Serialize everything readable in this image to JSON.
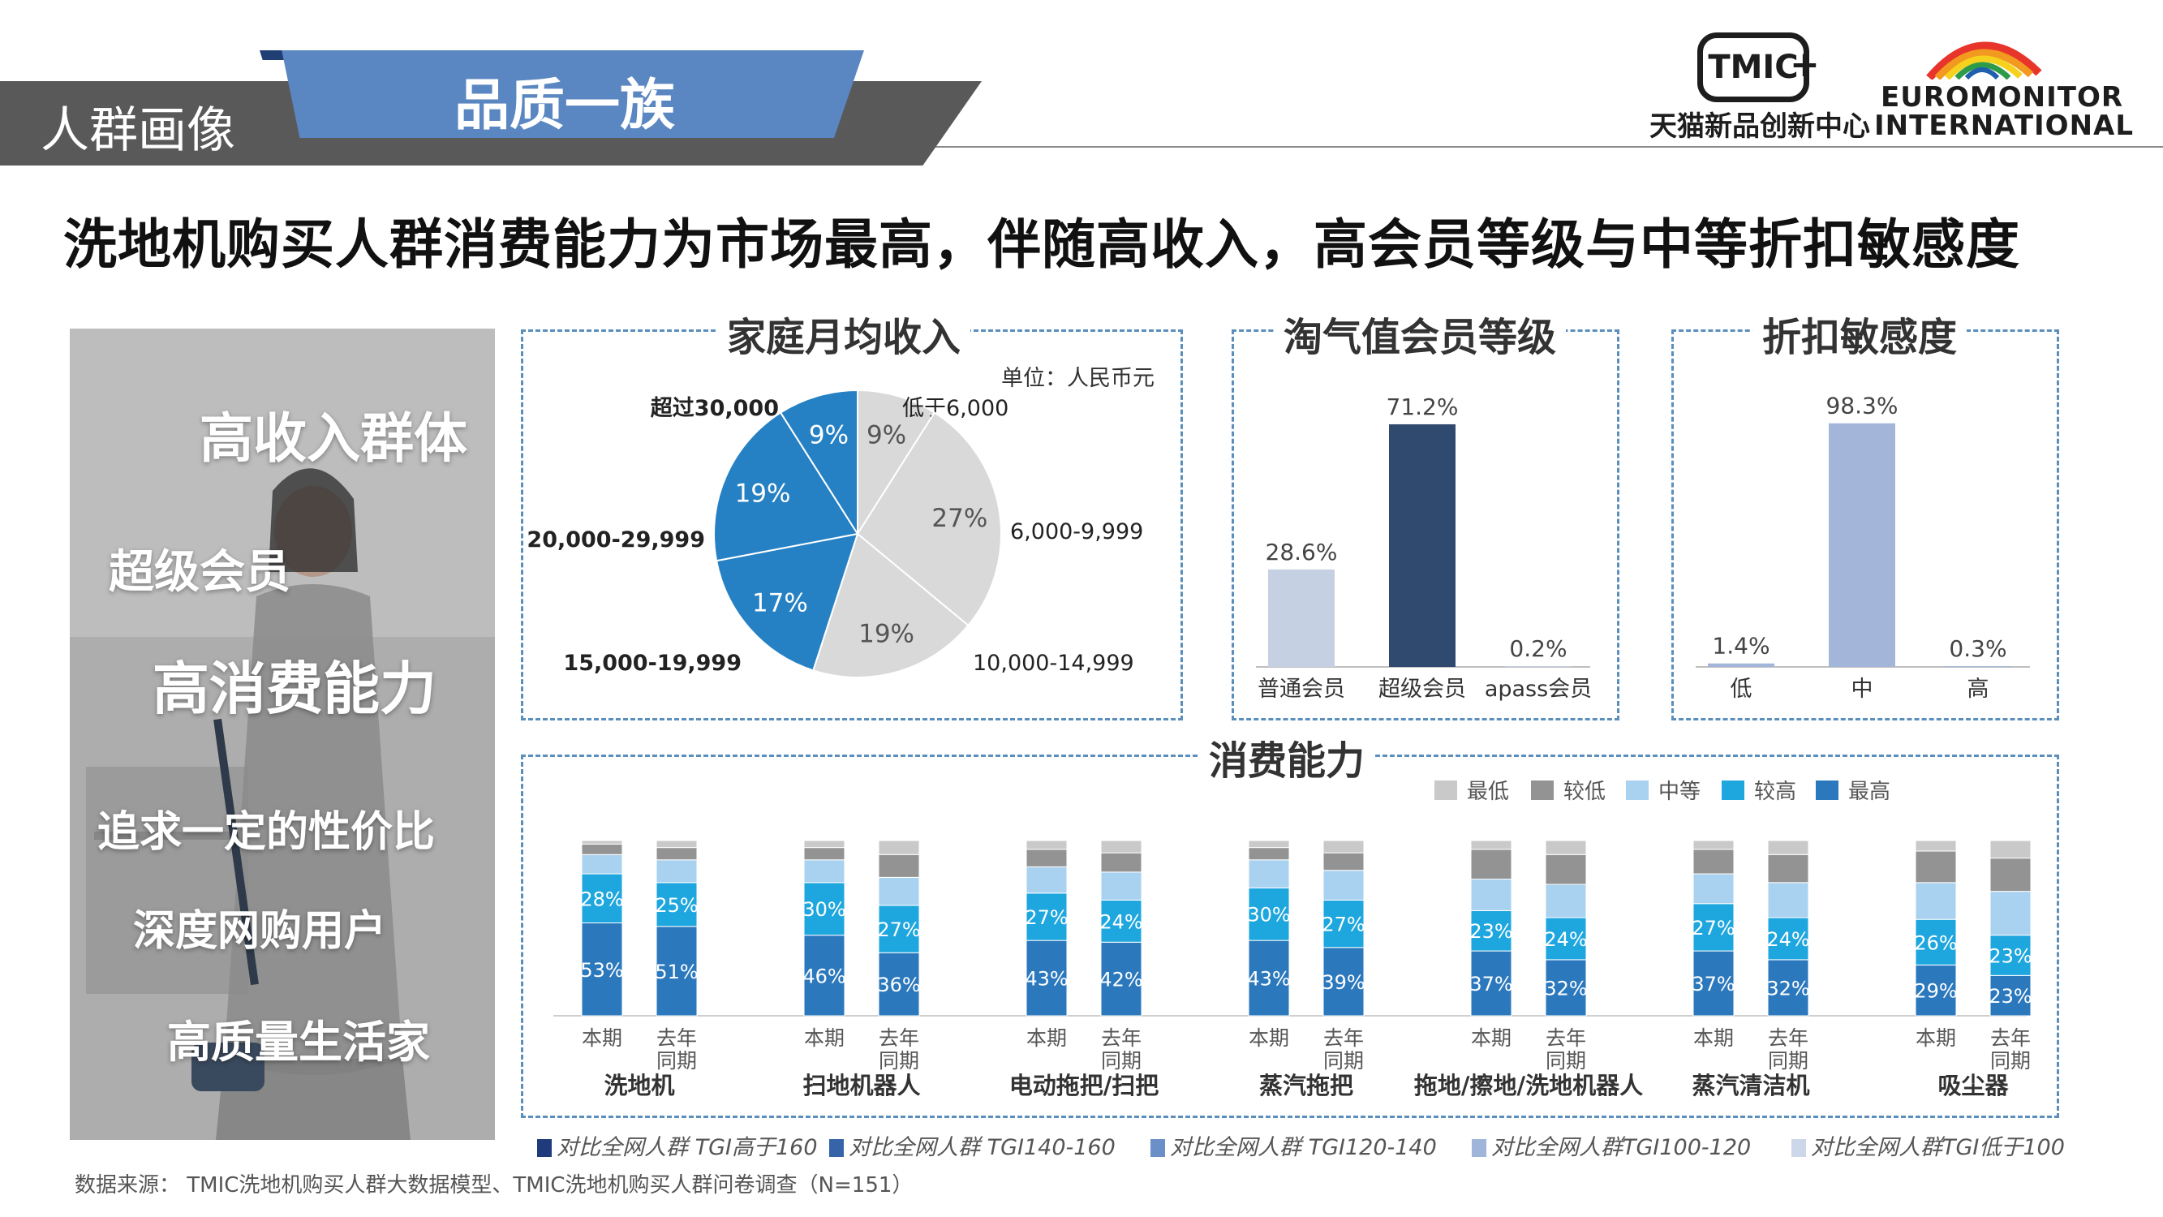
{
  "header": {
    "section_label": "人群画像",
    "tab_label": "品质一族",
    "logo_tmic": "TMIC",
    "logo_tmic_sub": "天猫新品创新中心",
    "logo_euro_line1": "EUROMONITOR",
    "logo_euro_line2": "INTERNATIONAL"
  },
  "headline": "洗地机购买人群消费能力为市场最高，伴随高收入，高会员等级与中等折扣敏感度",
  "photo_panel": {
    "labels": [
      "高收入群体",
      "超级会员",
      "高消费能力",
      "追求一定的性价比",
      "深度网购用户",
      "高质量生活家"
    ]
  },
  "colors": {
    "pie_blue": "#2581c4",
    "pie_grey": "#d9d9d9",
    "member_light": "#c5d0e3",
    "member_dark": "#2f4a6e",
    "discount_bar": "#a3b6d9",
    "seg_lowest": "#c9c9c9",
    "seg_low": "#939393",
    "seg_mid": "#a9d1f0",
    "seg_high": "#1ea6de",
    "seg_highest": "#2b78bd",
    "tgi_160": "#1f3b7b",
    "tgi_140": "#3763a8",
    "tgi_120": "#6b8fc8",
    "tgi_100": "#9fb5da",
    "tgi_low": "#cdd7ea"
  },
  "chart_data": [
    {
      "type": "pie",
      "title": "家庭月均收入",
      "unit_note": "单位：人民币元",
      "slices": [
        {
          "label": "低于6,000",
          "value": 9,
          "display": "9%",
          "group": "grey"
        },
        {
          "label": "6,000-9,999",
          "value": 27,
          "display": "27%",
          "group": "grey"
        },
        {
          "label": "10,000-14,999",
          "value": 19,
          "display": "19%",
          "group": "grey"
        },
        {
          "label": "15,000-19,999",
          "value": 17,
          "display": "17%",
          "group": "blue"
        },
        {
          "label": "20,000-29,999",
          "value": 19,
          "display": "19%",
          "group": "blue"
        },
        {
          "label": "超过30,000",
          "value": 9,
          "display": "9%",
          "group": "blue"
        }
      ]
    },
    {
      "type": "bar",
      "title": "淘气值会员等级",
      "categories": [
        "普通会员",
        "超级会员",
        "apass会员"
      ],
      "values": [
        28.6,
        71.2,
        0.2
      ],
      "labels": [
        "28.6%",
        "71.2%",
        "0.2%"
      ],
      "ylim": [
        0,
        80
      ]
    },
    {
      "type": "bar",
      "title": "折扣敏感度",
      "categories": [
        "低",
        "中",
        "高"
      ],
      "values": [
        1.4,
        98.3,
        0.3
      ],
      "labels": [
        "1.4%",
        "98.3%",
        "0.3%"
      ],
      "ylim": [
        0,
        110
      ]
    },
    {
      "type": "bar",
      "stacked": true,
      "title": "消费能力",
      "legend": [
        "最低",
        "较低",
        "中等",
        "较高",
        "最高"
      ],
      "period_labels": [
        "本期",
        "去年同期"
      ],
      "groups": [
        {
          "name": "洗地机",
          "bars": [
            {
              "period": "本期",
              "segments": [
                2,
                6,
                11,
                28,
                53
              ]
            },
            {
              "period": "去年同期",
              "segments": [
                4,
                7,
                13,
                25,
                51
              ]
            }
          ]
        },
        {
          "name": "扫地机器人",
          "bars": [
            {
              "period": "本期",
              "segments": [
                4,
                7,
                13,
                30,
                46
              ]
            },
            {
              "period": "去年同期",
              "segments": [
                8,
                13,
                16,
                27,
                36
              ]
            }
          ]
        },
        {
          "name": "电动拖把/扫把",
          "bars": [
            {
              "period": "本期",
              "segments": [
                5,
                10,
                15,
                27,
                43
              ]
            },
            {
              "period": "去年同期",
              "segments": [
                7,
                11,
                16,
                24,
                42
              ]
            }
          ]
        },
        {
          "name": "蒸汽拖把",
          "bars": [
            {
              "period": "本期",
              "segments": [
                4,
                7,
                16,
                30,
                43
              ]
            },
            {
              "period": "去年同期",
              "segments": [
                7,
                10,
                17,
                27,
                39
              ]
            }
          ]
        },
        {
          "name": "拖地/擦地/洗地机器人",
          "bars": [
            {
              "period": "本期",
              "segments": [
                5,
                17,
                18,
                23,
                37
              ]
            },
            {
              "period": "去年同期",
              "segments": [
                8,
                17,
                19,
                24,
                32
              ]
            }
          ]
        },
        {
          "name": "蒸汽清洁机",
          "bars": [
            {
              "period": "本期",
              "segments": [
                5,
                14,
                17,
                27,
                37
              ]
            },
            {
              "period": "去年同期",
              "segments": [
                8,
                16,
                20,
                24,
                32
              ]
            }
          ]
        },
        {
          "name": "吸尘器",
          "bars": [
            {
              "period": "本期",
              "segments": [
                6,
                18,
                21,
                26,
                29
              ]
            },
            {
              "period": "去年同期",
              "segments": [
                10,
                19,
                25,
                23,
                23
              ]
            }
          ]
        }
      ]
    }
  ],
  "tgi_legend": [
    "对比全网人群 TGI高于160",
    "对比全网人群 TGI140-160",
    "对比全网人群 TGI120-140",
    "对比全网人群TGI100-120",
    "对比全网人群TGI低于100"
  ],
  "footer": "数据来源： TMIC洗地机购买人群大数据模型、TMIC洗地机购买人群问卷调查（N=151）"
}
